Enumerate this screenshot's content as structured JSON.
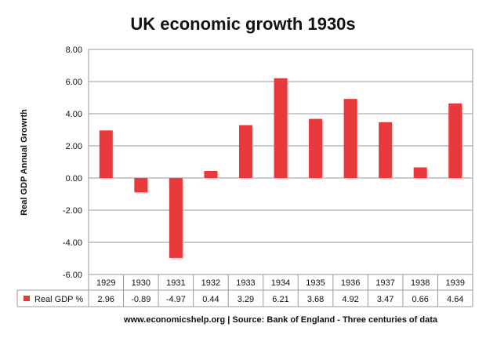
{
  "chart_data": {
    "type": "bar",
    "title": "UK economic growth 1930s",
    "ylabel": "Real GDP Annual Growrth",
    "xlabel": "",
    "categories": [
      "1929",
      "1930",
      "1931",
      "1932",
      "1933",
      "1934",
      "1935",
      "1936",
      "1937",
      "1938",
      "1939"
    ],
    "series": [
      {
        "name": "Real GDP %",
        "values": [
          2.96,
          -0.89,
          -4.97,
          0.44,
          3.29,
          6.21,
          3.68,
          4.92,
          3.47,
          0.66,
          4.64
        ],
        "labels": [
          "2.96",
          "-0.89",
          "-4.97",
          "0.44",
          "3.29",
          "6.21",
          "3.68",
          "4.92",
          "3.47",
          "0.66",
          "4.64"
        ],
        "color": "#e8393d"
      }
    ],
    "ylim": [
      -6,
      8
    ],
    "yticks": [
      "8.00",
      "6.00",
      "4.00",
      "2.00",
      "0.00",
      "-2.00",
      "-4.00",
      "-6.00"
    ],
    "ytick_values": [
      8,
      6,
      4,
      2,
      0,
      -2,
      -4,
      -6
    ],
    "grid": true,
    "legend": "data-table",
    "source": "www.economicshelp.org | Source: Bank of England - Three centuries of data"
  }
}
